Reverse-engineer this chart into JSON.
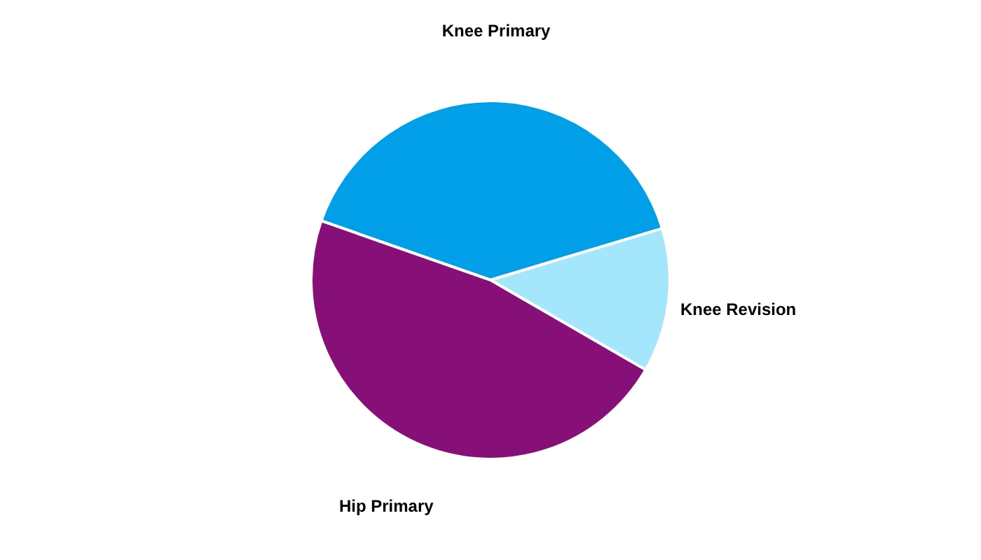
{
  "chart_data": {
    "type": "pie",
    "categories": [
      "Knee Primary",
      "Knee Revision",
      "Hip Primary"
    ],
    "values": [
      40,
      13,
      47
    ],
    "colors": [
      "#009fe8",
      "#a4e6fc",
      "#870f78"
    ],
    "legend": false
  }
}
